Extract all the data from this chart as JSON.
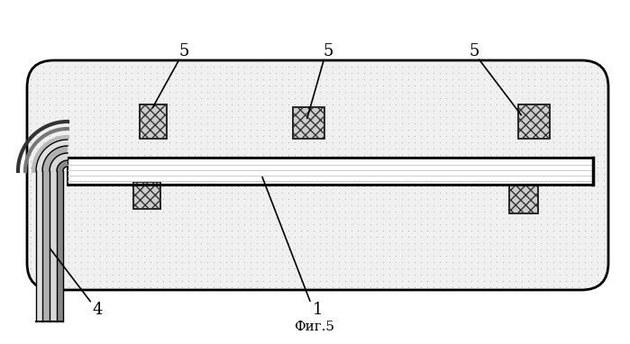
{
  "title": "Фиг.5",
  "background_color": "#ffffff",
  "formation_color": "#d8d8d8",
  "formation_dot_color": "#888888",
  "pipe_fill_color": "#e8e8e8",
  "pipe_stripe_color": "#aaaaaa",
  "black": "#000000",
  "label_1": "1",
  "label_4": "4",
  "label_5": "5",
  "figsize": [
    6.99,
    3.82
  ],
  "dpi": 100
}
